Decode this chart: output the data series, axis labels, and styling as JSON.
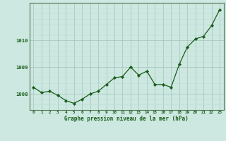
{
  "x": [
    0,
    1,
    2,
    3,
    4,
    5,
    6,
    7,
    8,
    9,
    10,
    11,
    12,
    13,
    14,
    15,
    16,
    17,
    18,
    19,
    20,
    21,
    22,
    23
  ],
  "y": [
    1008.25,
    1008.05,
    1008.1,
    1007.95,
    1007.75,
    1007.65,
    1007.8,
    1008.0,
    1008.1,
    1008.35,
    1008.6,
    1008.65,
    1009.0,
    1008.7,
    1008.85,
    1008.35,
    1008.35,
    1008.25,
    1009.1,
    1009.75,
    1010.05,
    1010.15,
    1010.55,
    1011.15
  ],
  "bg_color": "#cce8e0",
  "line_color": "#1a5c1a",
  "marker_color": "#1a5c1a",
  "grid_major_color": "#aac8c0",
  "grid_minor_color": "#c0dcd8",
  "xlabel": "Graphe pression niveau de la mer (hPa)",
  "yticks": [
    1008,
    1009,
    1010
  ],
  "ylim": [
    1007.4,
    1011.4
  ],
  "xlim": [
    -0.5,
    23.5
  ],
  "tick_label_color": "#1a5c1a",
  "xlabel_color": "#1a5c1a",
  "axis_color": "#557755"
}
